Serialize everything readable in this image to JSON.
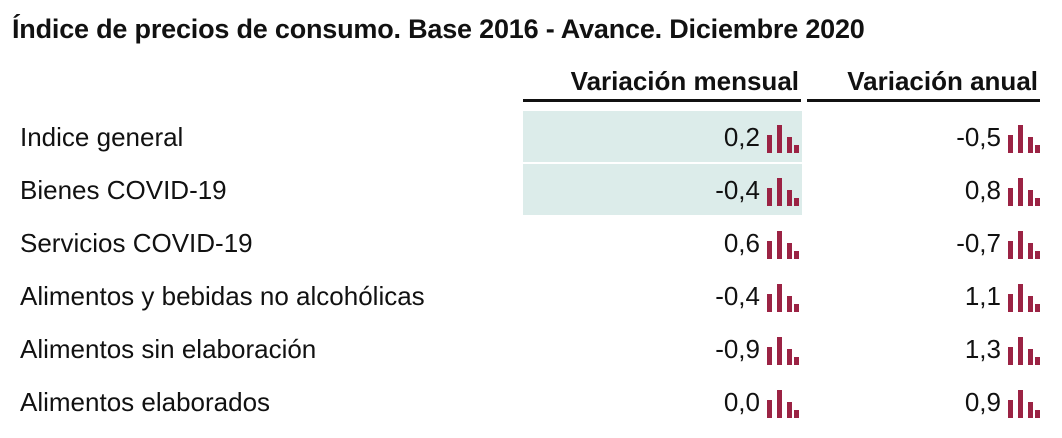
{
  "title": "Índice de precios de consumo. Base 2016 - Avance. Diciembre 2020",
  "columns": {
    "monthly": "Variación mensual",
    "annual": "Variación anual"
  },
  "colors": {
    "highlight": "#dcecea",
    "bar_icon": "#9b2344"
  },
  "rows": [
    {
      "label": "Indice general",
      "monthly": "0,2",
      "annual": "-0,5",
      "monthly_highlighted": true
    },
    {
      "label": "Bienes COVID-19",
      "monthly": "-0,4",
      "annual": "0,8",
      "monthly_highlighted": true
    },
    {
      "label": "Servicios COVID-19",
      "monthly": "0,6",
      "annual": "-0,7",
      "monthly_highlighted": false
    },
    {
      "label": "Alimentos y bebidas no alcohólicas",
      "monthly": "-0,4",
      "annual": "1,1",
      "monthly_highlighted": false
    },
    {
      "label": "Alimentos sin elaboración",
      "monthly": "-0,9",
      "annual": "1,3",
      "monthly_highlighted": false
    },
    {
      "label": "Alimentos elaborados",
      "monthly": "0,0",
      "annual": "0,9",
      "monthly_highlighted": false
    }
  ],
  "icons": {
    "chart": "bar-chart-icon"
  }
}
